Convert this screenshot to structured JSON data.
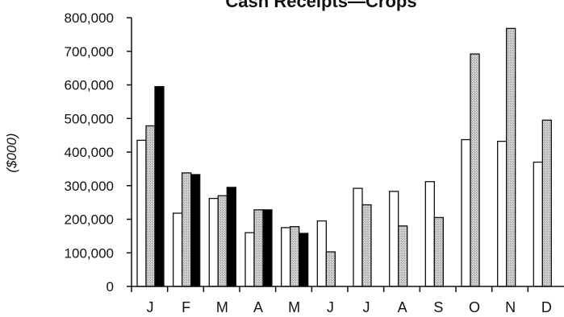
{
  "chart_data": {
    "type": "bar",
    "title": "Cash Receipts—Crops",
    "ylabel": "($000)",
    "xlabel": "",
    "categories": [
      "J",
      "F",
      "M",
      "A",
      "M",
      "J",
      "J",
      "A",
      "S",
      "O",
      "N",
      "D"
    ],
    "ylim": [
      0,
      800000
    ],
    "yticks": [
      "0",
      "100,000",
      "200,000",
      "300,000",
      "400,000",
      "500,000",
      "600,000",
      "700,000",
      "800,000"
    ],
    "grid": false,
    "legend": "none",
    "series": [
      {
        "values": [
          435000,
          218000,
          262000,
          160000,
          175000,
          195000,
          292000,
          283000,
          312000,
          437000,
          432000,
          370000
        ],
        "color": "#ffffff"
      },
      {
        "values": [
          478000,
          338000,
          270000,
          228000,
          178000,
          103000,
          243000,
          180000,
          205000,
          692000,
          768000,
          495000
        ],
        "color": "#c8c8c8"
      },
      {
        "values": [
          595000,
          333000,
          295000,
          228000,
          158000,
          null,
          null,
          null,
          null,
          null,
          null,
          null
        ],
        "color": "#000000"
      }
    ]
  }
}
